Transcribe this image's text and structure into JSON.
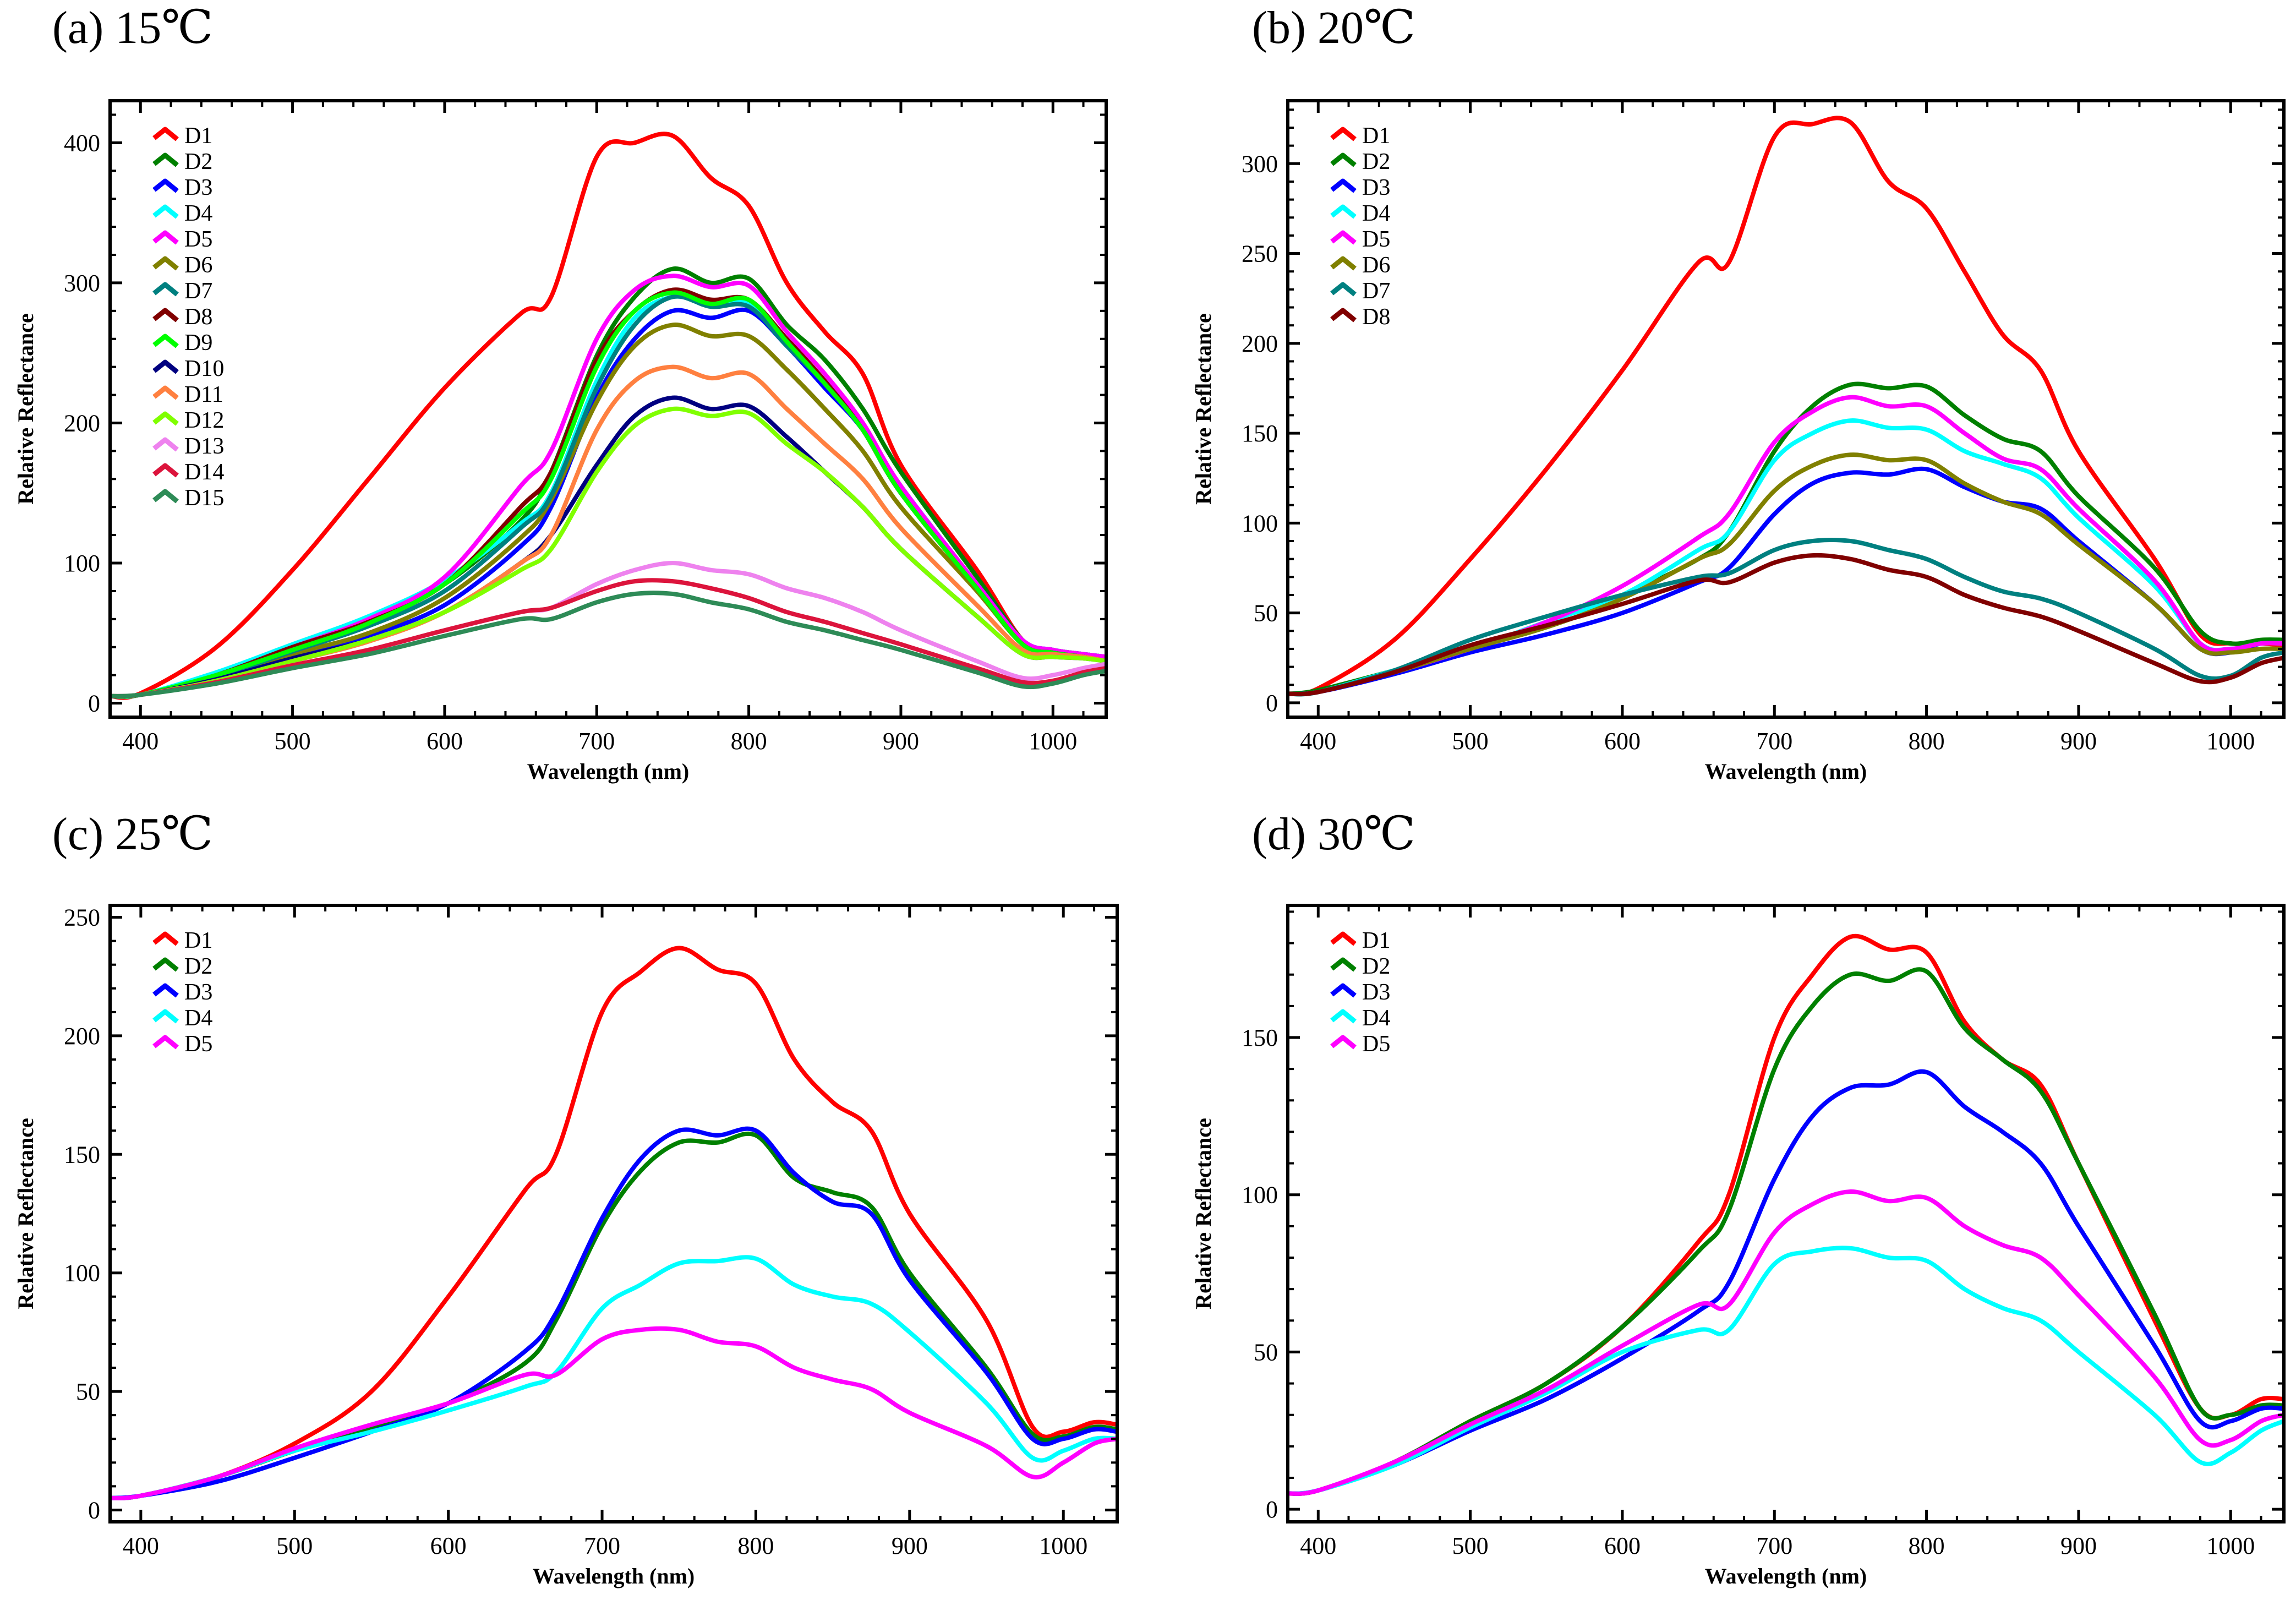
{
  "chart_data": [
    {
      "type": "line",
      "title": "(a) 15℃",
      "xlabel": "Wavelength (nm)",
      "ylabel": "Relative Reflectance",
      "xlim": [
        380,
        1035
      ],
      "ylim": [
        -10,
        430
      ],
      "xticks": [
        400,
        500,
        600,
        700,
        800,
        900,
        1000
      ],
      "yticks": [
        0,
        100,
        200,
        300,
        400
      ],
      "legend_position": "top-left",
      "x": [
        380,
        400,
        450,
        500,
        550,
        600,
        650,
        670,
        700,
        725,
        750,
        775,
        800,
        825,
        850,
        875,
        900,
        950,
        980,
        1000,
        1020,
        1035
      ],
      "series": [
        {
          "name": "D1",
          "color": "#ff0000",
          "values": [
            5,
            7,
            40,
            95,
            160,
            225,
            278,
            290,
            390,
            400,
            405,
            375,
            355,
            300,
            265,
            235,
            170,
            95,
            45,
            38,
            35,
            33
          ]
        },
        {
          "name": "D2",
          "color": "#008000",
          "values": [
            5,
            6,
            20,
            40,
            58,
            85,
            130,
            165,
            248,
            290,
            310,
            300,
            303,
            270,
            245,
            210,
            165,
            90,
            45,
            38,
            35,
            33
          ]
        },
        {
          "name": "D3",
          "color": "#0000ff",
          "values": [
            5,
            6,
            17,
            33,
            48,
            70,
            112,
            140,
            218,
            260,
            280,
            275,
            280,
            255,
            225,
            195,
            150,
            85,
            45,
            38,
            35,
            33
          ]
        },
        {
          "name": "D4",
          "color": "#00ffff",
          "values": [
            5,
            6,
            22,
            42,
            62,
            88,
            128,
            150,
            230,
            275,
            290,
            285,
            285,
            258,
            230,
            198,
            155,
            85,
            45,
            38,
            35,
            33
          ]
        },
        {
          "name": "D5",
          "color": "#ff00ff",
          "values": [
            5,
            6,
            20,
            40,
            60,
            90,
            155,
            180,
            260,
            295,
            305,
            297,
            298,
            265,
            235,
            200,
            155,
            85,
            45,
            38,
            35,
            33
          ]
        },
        {
          "name": "D6",
          "color": "#808000",
          "values": [
            5,
            6,
            18,
            35,
            50,
            75,
            118,
            145,
            215,
            255,
            270,
            262,
            262,
            238,
            210,
            180,
            140,
            80,
            42,
            36,
            33,
            30
          ]
        },
        {
          "name": "D7",
          "color": "#008080",
          "values": [
            5,
            6,
            19,
            37,
            55,
            80,
            125,
            148,
            225,
            270,
            290,
            283,
            283,
            255,
            228,
            195,
            150,
            82,
            42,
            36,
            33,
            30
          ]
        },
        {
          "name": "D8",
          "color": "#800000",
          "values": [
            5,
            6,
            20,
            40,
            58,
            85,
            140,
            165,
            245,
            280,
            295,
            288,
            288,
            260,
            230,
            195,
            150,
            82,
            42,
            36,
            33,
            30
          ]
        },
        {
          "name": "D9",
          "color": "#00ff00",
          "values": [
            5,
            6,
            20,
            38,
            57,
            85,
            135,
            160,
            240,
            280,
            293,
            285,
            288,
            258,
            228,
            195,
            150,
            82,
            42,
            36,
            33,
            30
          ]
        },
        {
          "name": "D10",
          "color": "#000080",
          "values": [
            5,
            6,
            17,
            32,
            45,
            65,
            100,
            120,
            170,
            205,
            218,
            210,
            212,
            190,
            165,
            140,
            110,
            62,
            35,
            33,
            32,
            30
          ]
        },
        {
          "name": "D11",
          "color": "#ff8040",
          "values": [
            5,
            6,
            16,
            30,
            44,
            65,
            100,
            120,
            195,
            230,
            240,
            232,
            235,
            210,
            185,
            160,
            125,
            70,
            38,
            35,
            33,
            30
          ]
        },
        {
          "name": "D12",
          "color": "#80ff00",
          "values": [
            5,
            6,
            16,
            30,
            45,
            65,
            95,
            110,
            165,
            198,
            210,
            205,
            207,
            185,
            165,
            140,
            110,
            62,
            35,
            33,
            32,
            30
          ]
        },
        {
          "name": "D13",
          "color": "#ee82ee",
          "values": [
            5,
            6,
            15,
            27,
            38,
            52,
            65,
            68,
            85,
            95,
            100,
            95,
            92,
            82,
            75,
            65,
            52,
            30,
            18,
            20,
            25,
            28
          ]
        },
        {
          "name": "D14",
          "color": "#dc143c",
          "values": [
            5,
            6,
            15,
            27,
            38,
            52,
            65,
            68,
            80,
            87,
            87,
            82,
            75,
            65,
            58,
            50,
            42,
            25,
            15,
            16,
            22,
            25
          ]
        },
        {
          "name": "D15",
          "color": "#2e8b57",
          "values": [
            5,
            6,
            14,
            25,
            35,
            48,
            60,
            60,
            72,
            78,
            78,
            72,
            67,
            58,
            52,
            45,
            38,
            22,
            12,
            14,
            20,
            23
          ]
        }
      ]
    },
    {
      "type": "line",
      "title": "(b) 20℃",
      "xlabel": "Wavelength (nm)",
      "ylabel": "Relative Reflectance",
      "xlim": [
        380,
        1035
      ],
      "ylim": [
        -8,
        335
      ],
      "xticks": [
        400,
        500,
        600,
        700,
        800,
        900,
        1000
      ],
      "yticks": [
        0,
        50,
        100,
        150,
        200,
        250,
        300
      ],
      "legend_position": "top-left",
      "x": [
        380,
        400,
        450,
        500,
        550,
        600,
        650,
        670,
        700,
        725,
        750,
        775,
        800,
        825,
        850,
        875,
        900,
        950,
        980,
        1000,
        1020,
        1035
      ],
      "series": [
        {
          "name": "D1",
          "color": "#ff0000",
          "values": [
            5,
            8,
            35,
            80,
            130,
            185,
            245,
            245,
            315,
            322,
            323,
            290,
            275,
            240,
            205,
            185,
            140,
            80,
            38,
            33,
            33,
            32
          ]
        },
        {
          "name": "D2",
          "color": "#008000",
          "values": [
            5,
            7,
            18,
            30,
            45,
            60,
            80,
            95,
            140,
            165,
            177,
            175,
            176,
            160,
            147,
            140,
            115,
            75,
            40,
            33,
            35,
            35
          ]
        },
        {
          "name": "D3",
          "color": "#0000ff",
          "values": [
            5,
            6,
            16,
            28,
            38,
            50,
            67,
            75,
            105,
            122,
            128,
            127,
            130,
            120,
            112,
            108,
            90,
            55,
            30,
            28,
            33,
            33
          ]
        },
        {
          "name": "D4",
          "color": "#00ffff",
          "values": [
            5,
            6,
            18,
            30,
            45,
            60,
            85,
            95,
            135,
            150,
            157,
            153,
            152,
            140,
            133,
            125,
            103,
            65,
            33,
            30,
            33,
            33
          ]
        },
        {
          "name": "D5",
          "color": "#ff00ff",
          "values": [
            5,
            6,
            17,
            30,
            45,
            65,
            92,
            105,
            145,
            162,
            170,
            165,
            165,
            150,
            136,
            130,
            108,
            68,
            33,
            30,
            33,
            33
          ]
        },
        {
          "name": "D6",
          "color": "#808000",
          "values": [
            5,
            6,
            17,
            30,
            42,
            58,
            80,
            88,
            118,
            132,
            138,
            135,
            135,
            122,
            112,
            105,
            88,
            55,
            30,
            28,
            30,
            30
          ]
        },
        {
          "name": "D7",
          "color": "#008080",
          "values": [
            5,
            6,
            18,
            35,
            48,
            60,
            70,
            72,
            85,
            90,
            90,
            85,
            80,
            70,
            62,
            58,
            50,
            30,
            15,
            15,
            25,
            28
          ]
        },
        {
          "name": "D8",
          "color": "#800000",
          "values": [
            5,
            6,
            17,
            32,
            43,
            55,
            68,
            67,
            78,
            82,
            80,
            74,
            70,
            60,
            53,
            48,
            40,
            22,
            12,
            14,
            22,
            25
          ]
        }
      ]
    },
    {
      "type": "line",
      "title": "(c) 25℃",
      "xlabel": "Wavelength (nm)",
      "ylabel": "Relative Reflectance",
      "xlim": [
        380,
        1035
      ],
      "ylim": [
        -5,
        255
      ],
      "xticks": [
        400,
        500,
        600,
        700,
        800,
        900,
        1000
      ],
      "yticks": [
        0,
        50,
        100,
        150,
        200,
        250
      ],
      "legend_position": "top-left",
      "x": [
        380,
        400,
        450,
        500,
        550,
        600,
        650,
        670,
        700,
        725,
        750,
        775,
        800,
        825,
        850,
        875,
        900,
        950,
        980,
        1000,
        1020,
        1035
      ],
      "series": [
        {
          "name": "D1",
          "color": "#ff0000",
          "values": [
            5,
            6,
            14,
            28,
            50,
            90,
            135,
            150,
            210,
            227,
            237,
            228,
            222,
            190,
            172,
            160,
            125,
            80,
            35,
            33,
            37,
            36
          ]
        },
        {
          "name": "D2",
          "color": "#008000",
          "values": [
            5,
            6,
            14,
            25,
            35,
            45,
            62,
            80,
            120,
            143,
            155,
            155,
            158,
            140,
            134,
            128,
            100,
            60,
            32,
            31,
            35,
            34
          ]
        },
        {
          "name": "D3",
          "color": "#0000ff",
          "values": [
            5,
            6,
            12,
            22,
            33,
            45,
            67,
            83,
            123,
            148,
            160,
            158,
            160,
            142,
            130,
            125,
            97,
            58,
            30,
            30,
            34,
            33
          ]
        },
        {
          "name": "D4",
          "color": "#00ffff",
          "values": [
            5,
            6,
            14,
            25,
            33,
            42,
            52,
            58,
            85,
            95,
            104,
            105,
            106,
            95,
            90,
            87,
            75,
            45,
            22,
            25,
            30,
            30
          ]
        },
        {
          "name": "D5",
          "color": "#ff00ff",
          "values": [
            5,
            6,
            14,
            26,
            36,
            45,
            57,
            57,
            72,
            76,
            76,
            71,
            69,
            60,
            55,
            51,
            41,
            27,
            14,
            20,
            28,
            30
          ]
        }
      ]
    },
    {
      "type": "line",
      "title": "(d) 30℃",
      "xlabel": "Wavelength (nm)",
      "ylabel": "Relative Reflectance",
      "xlim": [
        380,
        1035
      ],
      "ylim": [
        -4,
        192
      ],
      "xticks": [
        400,
        500,
        600,
        700,
        800,
        900,
        1000
      ],
      "yticks": [
        0,
        50,
        100,
        150
      ],
      "legend_position": "top-left",
      "x": [
        380,
        400,
        450,
        500,
        550,
        600,
        650,
        670,
        700,
        725,
        750,
        775,
        800,
        825,
        850,
        875,
        900,
        950,
        980,
        1000,
        1020,
        1035
      ],
      "series": [
        {
          "name": "D1",
          "color": "#ff0000",
          "values": [
            5,
            6,
            15,
            28,
            40,
            58,
            85,
            100,
            150,
            170,
            182,
            178,
            177,
            155,
            143,
            135,
            110,
            60,
            32,
            30,
            35,
            35
          ]
        },
        {
          "name": "D2",
          "color": "#008000",
          "values": [
            5,
            6,
            15,
            28,
            40,
            58,
            82,
            95,
            140,
            160,
            170,
            168,
            171,
            153,
            143,
            133,
            110,
            62,
            32,
            30,
            33,
            33
          ]
        },
        {
          "name": "D3",
          "color": "#0000ff",
          "values": [
            5,
            6,
            14,
            25,
            35,
            48,
            63,
            72,
            105,
            125,
            134,
            135,
            139,
            128,
            120,
            110,
            90,
            52,
            28,
            28,
            32,
            32
          ]
        },
        {
          "name": "D4",
          "color": "#00ffff",
          "values": [
            5,
            6,
            14,
            26,
            37,
            50,
            57,
            57,
            78,
            82,
            83,
            80,
            79,
            70,
            64,
            60,
            50,
            30,
            15,
            18,
            25,
            28
          ]
        },
        {
          "name": "D5",
          "color": "#ff00ff",
          "values": [
            5,
            6,
            15,
            27,
            38,
            52,
            65,
            65,
            88,
            97,
            101,
            98,
            99,
            90,
            84,
            80,
            68,
            42,
            22,
            22,
            28,
            30
          ]
        }
      ]
    }
  ]
}
